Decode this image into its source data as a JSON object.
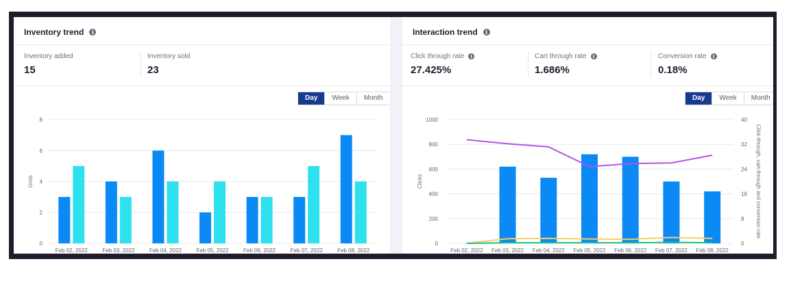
{
  "inventory": {
    "title": "Inventory trend",
    "metrics": [
      {
        "label": "Inventory added",
        "value": "15"
      },
      {
        "label": "Inventory sold",
        "value": "23"
      }
    ],
    "periods": [
      "Day",
      "Week",
      "Month"
    ],
    "selected_period": "Day"
  },
  "interaction": {
    "title": "Interaction trend",
    "metrics": [
      {
        "label": "Click through rate",
        "value": "27.425%"
      },
      {
        "label": "Cart through rate",
        "value": "1.686%"
      },
      {
        "label": "Conversion rate",
        "value": "0.18%"
      }
    ],
    "periods": [
      "Day",
      "Week",
      "Month"
    ],
    "selected_period": "Day"
  },
  "colors": {
    "bar_blue": "#0b8af5",
    "bar_cyan": "#2ee1ef",
    "line_purple": "#b452ea",
    "line_yellow": "#f7cc6a",
    "line_green": "#19c27b",
    "active_tab": "#17398e"
  },
  "chart_data": [
    {
      "type": "bar",
      "categories": [
        "Feb 02, 2022",
        "Feb 03, 2022",
        "Feb 04, 2022",
        "Feb 05, 2022",
        "Feb 06, 2022",
        "Feb 07, 2022",
        "Feb 08, 2022"
      ],
      "series": [
        {
          "values": [
            3,
            4,
            6,
            2,
            3,
            3,
            7
          ]
        },
        {
          "values": [
            5,
            3,
            4,
            4,
            3,
            5,
            4
          ]
        }
      ],
      "ylabel": "Units",
      "ylim": [
        0,
        8
      ],
      "yticks": [
        0,
        2,
        4,
        6,
        8
      ],
      "grid": true
    },
    {
      "type": "bar",
      "categories": [
        "Feb 02, 2022",
        "Feb 03, 2022",
        "Feb 04, 2022",
        "Feb 05, 2022",
        "Feb 06, 2022",
        "Feb 07, 2022",
        "Feb 08, 2022"
      ],
      "series": [
        {
          "type": "bar",
          "axis": "left",
          "values": [
            0,
            620,
            530,
            720,
            700,
            500,
            420
          ]
        },
        {
          "type": "line",
          "axis": "right",
          "values": [
            33.5,
            32.2,
            31.2,
            24.8,
            25.8,
            26.0,
            28.5
          ]
        },
        {
          "type": "line",
          "axis": "right",
          "values": [
            0,
            1.5,
            1.6,
            1.4,
            1.3,
            1.9,
            1.6
          ]
        },
        {
          "type": "line",
          "axis": "right",
          "values": [
            0,
            0.2,
            0.2,
            0.2,
            0.2,
            0.3,
            0.2
          ]
        }
      ],
      "ylabel": "Clicks",
      "ylabel_right": "Click-through, cart-through and conversion rate",
      "ylim": [
        0,
        1000
      ],
      "yticks": [
        0,
        200,
        400,
        600,
        800,
        1000
      ],
      "ylim_right": [
        0,
        40
      ],
      "yticks_right": [
        0,
        8,
        16,
        24,
        32,
        40
      ],
      "grid": true
    }
  ]
}
